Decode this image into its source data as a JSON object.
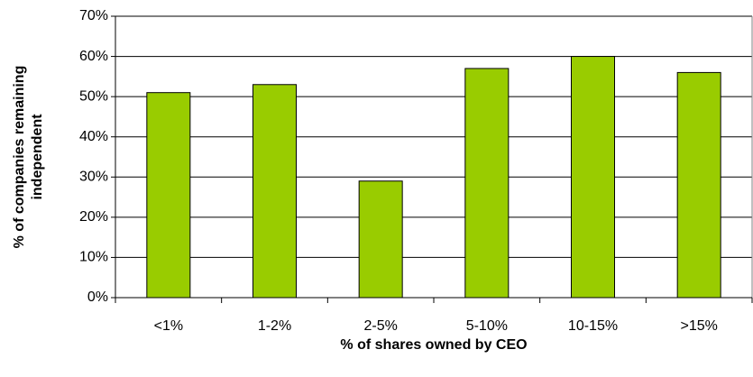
{
  "chart_data": {
    "type": "bar",
    "categories": [
      "<1%",
      "1-2%",
      "2-5%",
      "5-10%",
      "10-15%",
      ">15%"
    ],
    "values": [
      51,
      53,
      29,
      57,
      60,
      56
    ],
    "color": "#99cc00",
    "x_label": "% of shares owned by CEO",
    "y_label": [
      "% of companies remaining",
      "independent"
    ],
    "ylim": [
      0,
      70
    ],
    "yticks": [
      {
        "value": 0,
        "label": "0%"
      },
      {
        "value": 10,
        "label": "10%"
      },
      {
        "value": 20,
        "label": "20%"
      },
      {
        "value": 30,
        "label": "30%"
      },
      {
        "value": 40,
        "label": "40%"
      },
      {
        "value": 50,
        "label": "50%"
      },
      {
        "value": 60,
        "label": "60%"
      },
      {
        "value": 70,
        "label": "70%"
      }
    ],
    "grid": true
  }
}
